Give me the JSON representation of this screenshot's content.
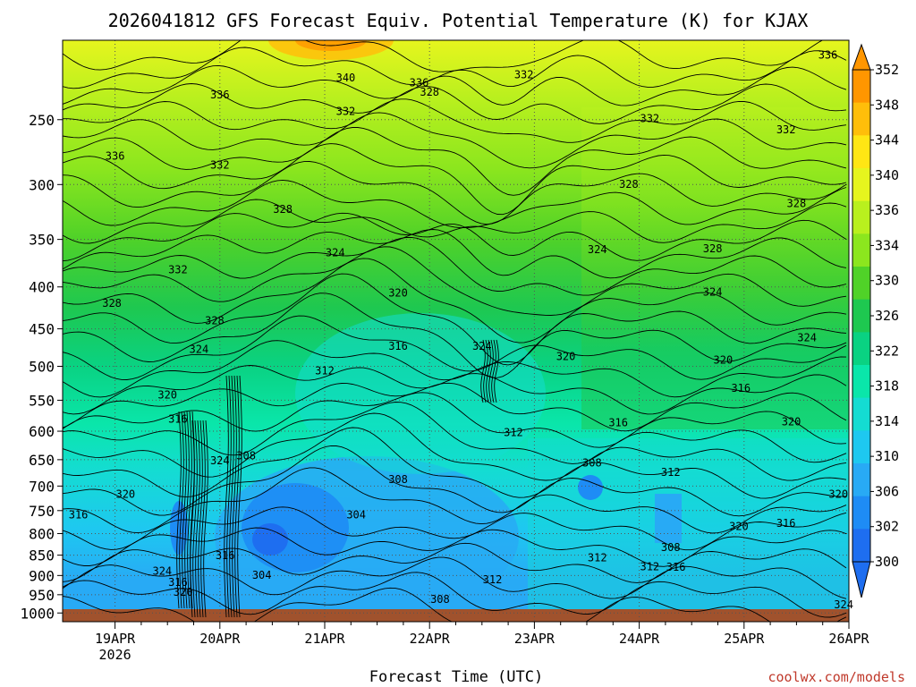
{
  "chart_data": {
    "type": "heatmap",
    "title": "2026041812 GFS Forecast Equiv. Potential Temperature (K) for KJAX",
    "xlabel": "Forecast Time (UTC)",
    "ylabel": "",
    "credit": "coolwx.com/models",
    "x_ticks": [
      {
        "label": "19APR",
        "sublabel": "2026",
        "day": 19
      },
      {
        "label": "20APR",
        "sublabel": "",
        "day": 20
      },
      {
        "label": "21APR",
        "sublabel": "",
        "day": 21
      },
      {
        "label": "22APR",
        "sublabel": "",
        "day": 22
      },
      {
        "label": "23APR",
        "sublabel": "",
        "day": 23
      },
      {
        "label": "24APR",
        "sublabel": "",
        "day": 24
      },
      {
        "label": "25APR",
        "sublabel": "",
        "day": 25
      },
      {
        "label": "26APR",
        "sublabel": "",
        "day": 26
      }
    ],
    "xlim_days": [
      18.5,
      26.0
    ],
    "y_ticks": [
      250,
      300,
      350,
      400,
      450,
      500,
      550,
      600,
      650,
      700,
      750,
      800,
      850,
      900,
      950,
      1000
    ],
    "ylim_hpa": [
      200,
      1000
    ],
    "colorbar": {
      "labels": [
        352,
        348,
        344,
        340,
        336,
        334,
        330,
        326,
        322,
        318,
        314,
        310,
        306,
        302,
        300
      ],
      "bins": [
        {
          "v": 300,
          "color": "#1e6ef0"
        },
        {
          "v": 302,
          "color": "#1e8cf5"
        },
        {
          "v": 306,
          "color": "#28aaf5"
        },
        {
          "v": 310,
          "color": "#1ec8f0"
        },
        {
          "v": 314,
          "color": "#14dcd2"
        },
        {
          "v": 318,
          "color": "#0ae6aa"
        },
        {
          "v": 322,
          "color": "#0ad282"
        },
        {
          "v": 326,
          "color": "#1ec850"
        },
        {
          "v": 330,
          "color": "#50d228"
        },
        {
          "v": 334,
          "color": "#8ce61e"
        },
        {
          "v": 336,
          "color": "#b9f01e"
        },
        {
          "v": 340,
          "color": "#e6f51e"
        },
        {
          "v": 344,
          "color": "#ffe614"
        },
        {
          "v": 348,
          "color": "#ffbe0a"
        },
        {
          "v": 352,
          "color": "#ff9600"
        }
      ]
    },
    "contour_labels": [
      {
        "text": "340",
        "day": 21.2,
        "p": 224
      },
      {
        "text": "336",
        "day": 21.9,
        "p": 227
      },
      {
        "text": "328",
        "day": 22.0,
        "p": 233
      },
      {
        "text": "332",
        "day": 22.9,
        "p": 222
      },
      {
        "text": "336",
        "day": 25.8,
        "p": 210
      },
      {
        "text": "336",
        "day": 20.0,
        "p": 235
      },
      {
        "text": "332",
        "day": 21.2,
        "p": 246
      },
      {
        "text": "332",
        "day": 24.1,
        "p": 251
      },
      {
        "text": "332",
        "day": 25.4,
        "p": 259
      },
      {
        "text": "336",
        "day": 19.0,
        "p": 279
      },
      {
        "text": "332",
        "day": 20.0,
        "p": 286
      },
      {
        "text": "328",
        "day": 20.6,
        "p": 324
      },
      {
        "text": "328",
        "day": 23.9,
        "p": 302
      },
      {
        "text": "328",
        "day": 25.5,
        "p": 319
      },
      {
        "text": "324",
        "day": 21.1,
        "p": 366
      },
      {
        "text": "324",
        "day": 23.6,
        "p": 363
      },
      {
        "text": "328",
        "day": 24.7,
        "p": 362
      },
      {
        "text": "332",
        "day": 19.6,
        "p": 384
      },
      {
        "text": "324",
        "day": 24.7,
        "p": 409
      },
      {
        "text": "328",
        "day": 18.97,
        "p": 422
      },
      {
        "text": "320",
        "day": 21.7,
        "p": 410
      },
      {
        "text": "328",
        "day": 19.95,
        "p": 443
      },
      {
        "text": "316",
        "day": 21.7,
        "p": 476
      },
      {
        "text": "324",
        "day": 22.5,
        "p": 476
      },
      {
        "text": "324",
        "day": 25.6,
        "p": 465
      },
      {
        "text": "324",
        "day": 19.8,
        "p": 480
      },
      {
        "text": "320",
        "day": 23.3,
        "p": 490
      },
      {
        "text": "320",
        "day": 24.8,
        "p": 495
      },
      {
        "text": "312",
        "day": 21.0,
        "p": 510
      },
      {
        "text": "316",
        "day": 24.97,
        "p": 536
      },
      {
        "text": "320",
        "day": 19.5,
        "p": 546
      },
      {
        "text": "316",
        "day": 19.6,
        "p": 584
      },
      {
        "text": "316",
        "day": 23.8,
        "p": 590
      },
      {
        "text": "320",
        "day": 25.45,
        "p": 589
      },
      {
        "text": "312",
        "day": 22.8,
        "p": 607
      },
      {
        "text": "308",
        "day": 20.25,
        "p": 648
      },
      {
        "text": "324",
        "day": 20.0,
        "p": 657
      },
      {
        "text": "308",
        "day": 23.55,
        "p": 661
      },
      {
        "text": "312",
        "day": 24.3,
        "p": 679
      },
      {
        "text": "308",
        "day": 21.7,
        "p": 692
      },
      {
        "text": "320",
        "day": 19.1,
        "p": 722
      },
      {
        "text": "320",
        "day": 25.9,
        "p": 722
      },
      {
        "text": "316",
        "day": 18.65,
        "p": 765
      },
      {
        "text": "304",
        "day": 21.3,
        "p": 765
      },
      {
        "text": "320",
        "day": 24.95,
        "p": 790
      },
      {
        "text": "316",
        "day": 25.4,
        "p": 783
      },
      {
        "text": "316",
        "day": 20.05,
        "p": 857
      },
      {
        "text": "308",
        "day": 24.3,
        "p": 838
      },
      {
        "text": "312",
        "day": 23.6,
        "p": 863
      },
      {
        "text": "312",
        "day": 24.1,
        "p": 885
      },
      {
        "text": "316",
        "day": 24.35,
        "p": 886
      },
      {
        "text": "324",
        "day": 19.45,
        "p": 896
      },
      {
        "text": "304",
        "day": 20.4,
        "p": 906
      },
      {
        "text": "316",
        "day": 19.6,
        "p": 925
      },
      {
        "text": "312",
        "day": 22.6,
        "p": 917
      },
      {
        "text": "320",
        "day": 19.65,
        "p": 950
      },
      {
        "text": "308",
        "day": 22.1,
        "p": 970
      },
      {
        "text": "324",
        "day": 25.95,
        "p": 985
      }
    ]
  }
}
